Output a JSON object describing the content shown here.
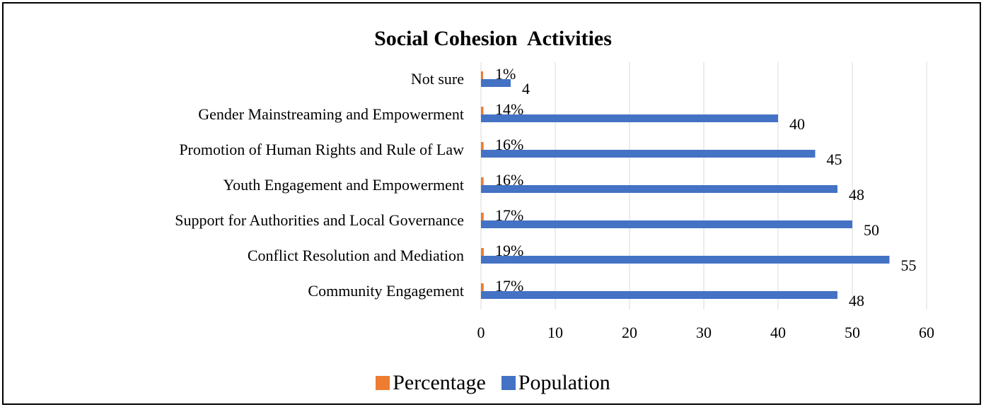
{
  "chart_data": {
    "type": "bar",
    "orientation": "horizontal",
    "title": "Social Cohesion  Activities",
    "categories": [
      "Not sure",
      "Gender Mainstreaming and Empowerment",
      "Promotion of Human Rights and Rule of Law",
      "Youth Engagement and Empowerment",
      "Support for Authorities and Local Governance",
      "Conflict Resolution and Mediation",
      "Community Engagement"
    ],
    "series": [
      {
        "name": "Percentage",
        "color": "#ED7D31",
        "values": [
          0.01,
          0.14,
          0.16,
          0.16,
          0.17,
          0.19,
          0.17
        ],
        "labels": [
          "1%",
          "14%",
          "16%",
          "16%",
          "17%",
          "19%",
          "17%"
        ]
      },
      {
        "name": "Population",
        "color": "#4472C4",
        "values": [
          4,
          40,
          45,
          48,
          50,
          55,
          48
        ],
        "labels": [
          "4",
          "40",
          "45",
          "48",
          "50",
          "55",
          "48"
        ]
      }
    ],
    "xlim": [
      0,
      60
    ],
    "xticks": [
      "0",
      "10",
      "20",
      "30",
      "40",
      "50",
      "60"
    ],
    "grid": true,
    "legend_position": "bottom"
  }
}
